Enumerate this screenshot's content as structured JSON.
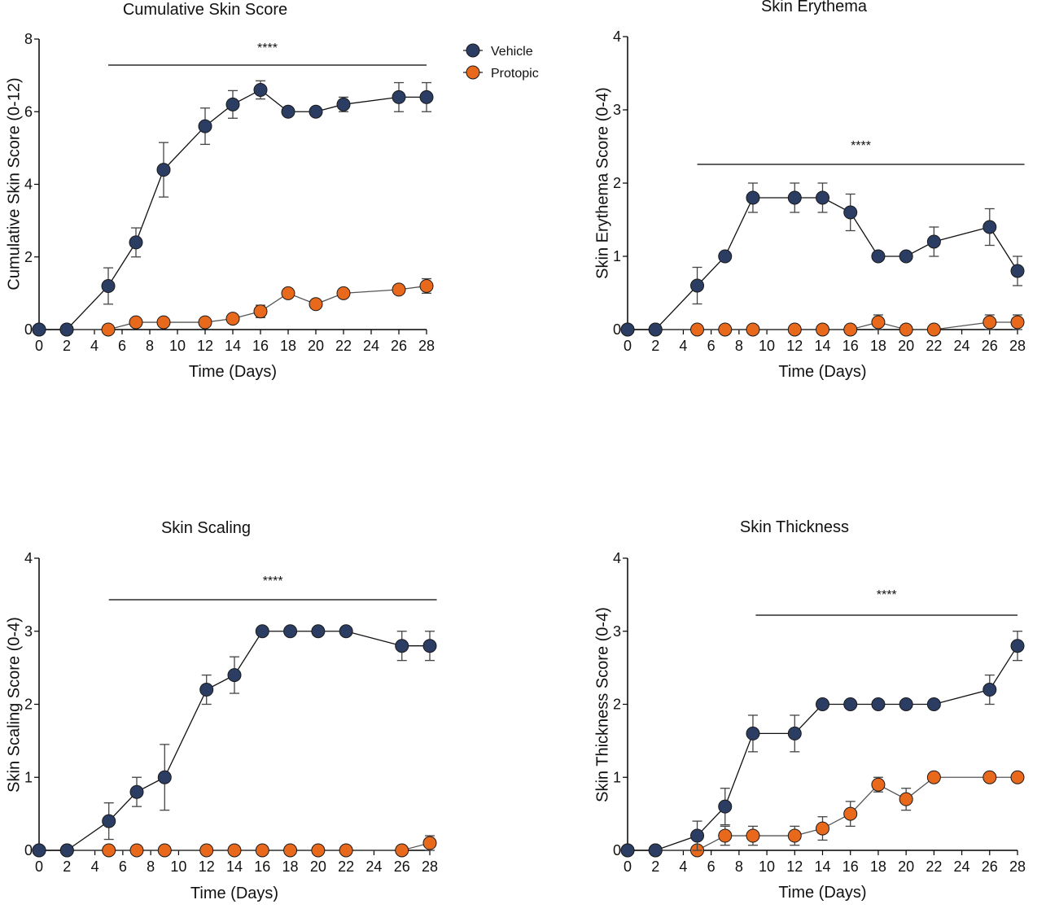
{
  "legend": {
    "placement": "top-right of first panel",
    "items": [
      {
        "label": "Vehicle",
        "color": "#2b3d63"
      },
      {
        "label": "Protopic",
        "color": "#e8681c"
      }
    ]
  },
  "chart_data": [
    {
      "type": "line",
      "title": "Cumulative Skin Score",
      "xlabel": "Time (Days)",
      "ylabel": "Cumulative Skin Score (0-12)",
      "xlim": [
        0,
        28
      ],
      "ylim": [
        0,
        8
      ],
      "xticks": [
        0,
        2,
        4,
        6,
        8,
        10,
        12,
        14,
        16,
        18,
        20,
        22,
        24,
        26,
        28
      ],
      "yticks": [
        0,
        2,
        4,
        6,
        8
      ],
      "x": [
        0,
        2,
        5,
        7,
        9,
        12,
        14,
        16,
        18,
        20,
        22,
        26,
        28
      ],
      "significance": {
        "label": "****",
        "from": 5,
        "to": 28
      },
      "series": [
        {
          "name": "Vehicle",
          "color": "#2b3d63",
          "values": [
            0,
            0,
            1.2,
            2.4,
            4.4,
            5.6,
            6.2,
            6.6,
            6.0,
            6.0,
            6.2,
            6.4,
            6.4
          ],
          "errors": [
            0,
            0,
            0.5,
            0.4,
            0.75,
            0.5,
            0.38,
            0.25,
            0,
            0,
            0.2,
            0.4,
            0.4
          ]
        },
        {
          "name": "Protopic",
          "color": "#e8681c",
          "values": [
            0,
            0,
            0,
            0.2,
            0.2,
            0.2,
            0.3,
            0.5,
            1.0,
            0.7,
            1.0,
            1.1,
            1.2
          ],
          "errors": [
            0,
            0,
            0,
            0,
            0,
            0,
            0,
            0.17,
            0,
            0,
            0,
            0,
            0.2
          ]
        }
      ]
    },
    {
      "type": "line",
      "title": "Skin Erythema",
      "xlabel": "Time (Days)",
      "ylabel": "Skin Erythema Score (0-4)",
      "xlim": [
        0,
        28
      ],
      "ylim": [
        0,
        4
      ],
      "xticks": [
        0,
        2,
        4,
        6,
        8,
        10,
        12,
        14,
        16,
        18,
        20,
        22,
        24,
        26,
        28
      ],
      "yticks": [
        0,
        1,
        2,
        3,
        4
      ],
      "x": [
        0,
        2,
        5,
        7,
        9,
        12,
        14,
        16,
        18,
        20,
        22,
        26,
        28
      ],
      "significance": {
        "label": "****",
        "from": 5,
        "to": 28.5
      },
      "series": [
        {
          "name": "Vehicle",
          "color": "#2b3d63",
          "values": [
            0,
            0,
            0.6,
            1.0,
            1.8,
            1.8,
            1.8,
            1.6,
            1.0,
            1.0,
            1.2,
            1.4,
            0.8
          ],
          "errors": [
            0,
            0,
            0.25,
            0,
            0.2,
            0.2,
            0.2,
            0.25,
            0,
            0,
            0.2,
            0.25,
            0.2
          ]
        },
        {
          "name": "Protopic",
          "color": "#e8681c",
          "values": [
            0,
            0,
            0,
            0,
            0,
            0,
            0,
            0,
            0.1,
            0,
            0,
            0.1,
            0.1
          ],
          "errors": [
            0,
            0,
            0,
            0,
            0,
            0,
            0,
            0,
            0.1,
            0,
            0,
            0.1,
            0.1
          ]
        }
      ]
    },
    {
      "type": "line",
      "title": "Skin Scaling",
      "xlabel": "Time (Days)",
      "ylabel": "Skin Scaling Score (0-4)",
      "xlim": [
        0,
        28
      ],
      "ylim": [
        0,
        4
      ],
      "xticks": [
        0,
        2,
        4,
        6,
        8,
        10,
        12,
        14,
        16,
        18,
        20,
        22,
        24,
        26,
        28
      ],
      "yticks": [
        0,
        1,
        2,
        3,
        4
      ],
      "x": [
        0,
        2,
        5,
        7,
        9,
        12,
        14,
        16,
        18,
        20,
        22,
        26,
        28
      ],
      "significance": {
        "label": "****",
        "from": 5,
        "to": 28.5
      },
      "series": [
        {
          "name": "Vehicle",
          "color": "#2b3d63",
          "values": [
            0,
            0,
            0.4,
            0.8,
            1.0,
            2.2,
            2.4,
            3.0,
            3.0,
            3.0,
            3.0,
            2.8,
            2.8
          ],
          "errors": [
            0,
            0,
            0.25,
            0.2,
            0.45,
            0.2,
            0.25,
            0,
            0,
            0,
            0,
            0.2,
            0.2
          ]
        },
        {
          "name": "Protopic",
          "color": "#e8681c",
          "values": [
            0,
            0,
            0,
            0,
            0,
            0,
            0,
            0,
            0,
            0,
            0,
            0,
            0.1
          ],
          "errors": [
            0,
            0,
            0,
            0,
            0,
            0,
            0,
            0,
            0,
            0,
            0,
            0,
            0.1
          ]
        }
      ]
    },
    {
      "type": "line",
      "title": "Skin Thickness",
      "xlabel": "Time (Days)",
      "ylabel": "Skin Thickness Score (0-4)",
      "xlim": [
        0,
        28
      ],
      "ylim": [
        0,
        4
      ],
      "xticks": [
        0,
        2,
        4,
        6,
        8,
        10,
        12,
        14,
        16,
        18,
        20,
        22,
        24,
        26,
        28
      ],
      "yticks": [
        0,
        1,
        2,
        3,
        4
      ],
      "x": [
        0,
        2,
        5,
        7,
        9,
        12,
        14,
        16,
        18,
        20,
        22,
        26,
        28
      ],
      "significance": {
        "label": "****",
        "from": 9.2,
        "to": 28
      },
      "series": [
        {
          "name": "Vehicle",
          "color": "#2b3d63",
          "values": [
            0,
            0,
            0.2,
            0.6,
            1.6,
            1.6,
            2.0,
            2.0,
            2.0,
            2.0,
            2.0,
            2.2,
            2.8
          ],
          "errors": [
            0,
            0,
            0.2,
            0.25,
            0.25,
            0.25,
            0,
            0,
            0,
            0,
            0,
            0.2,
            0.2
          ]
        },
        {
          "name": "Protopic",
          "color": "#e8681c",
          "values": [
            0,
            0,
            0,
            0.2,
            0.2,
            0.2,
            0.3,
            0.5,
            0.9,
            0.7,
            1.0,
            1.0,
            1.0
          ],
          "errors": [
            0,
            0,
            0,
            0.13,
            0.13,
            0.13,
            0.16,
            0.17,
            0.1,
            0.15,
            0,
            0,
            0
          ]
        }
      ]
    }
  ]
}
